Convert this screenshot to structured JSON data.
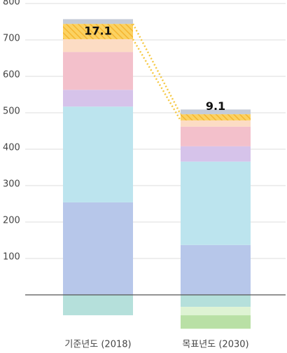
{
  "chart_data": {
    "type": "stacked-bar",
    "categories": [
      "기준년도 (2018)",
      "목표년도 (2030)"
    ],
    "series": [
      {
        "color": "#b7c7ea",
        "values": [
          254,
          137
        ]
      },
      {
        "color": "#bce4ee",
        "values": [
          263,
          229
        ]
      },
      {
        "color": "#d6c3ea",
        "values": [
          46,
          42
        ]
      },
      {
        "color": "#f3c0cb",
        "values": [
          104,
          54
        ]
      },
      {
        "color": "#fcdcc4",
        "values": [
          35,
          17
        ]
      },
      {
        "color": "#f9c74f",
        "pattern": "hatch",
        "values": [
          42,
          17
        ]
      },
      {
        "color": "#c5ccd8",
        "values": [
          13,
          13
        ]
      },
      {
        "color": "#b5e0db",
        "values": [
          -56,
          -33
        ]
      },
      {
        "color": "#def3d3",
        "values": [
          0,
          -23
        ]
      },
      {
        "color": "#b9e0a5",
        "values": [
          0,
          -37
        ]
      }
    ],
    "annotations": [
      "17.1",
      "9.1"
    ],
    "ylim": [
      -100,
      800
    ],
    "yticks": [
      100,
      200,
      300,
      400,
      500,
      600,
      700,
      800
    ],
    "grid": true
  }
}
